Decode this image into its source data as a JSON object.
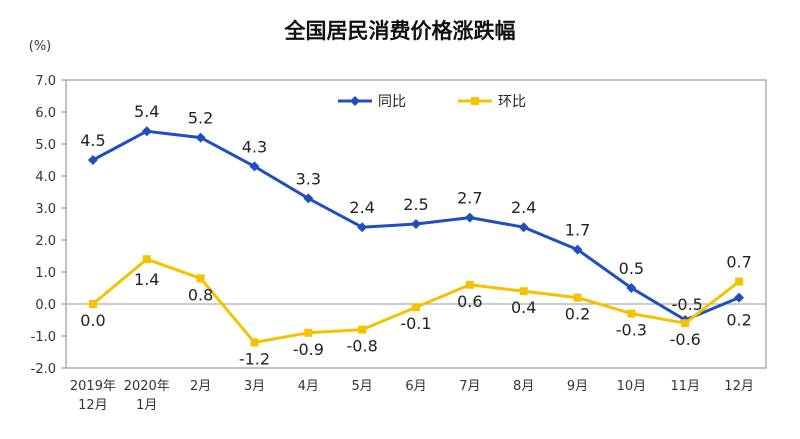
{
  "chart_data": {
    "type": "line",
    "title": "全国居民消费价格涨跌幅",
    "unit_label": "(%)",
    "ylim": [
      -2.0,
      7.0
    ],
    "yticks": [
      "7.0",
      "6.0",
      "5.0",
      "4.0",
      "3.0",
      "2.0",
      "1.0",
      "0.0",
      "-1.0",
      "-2.0"
    ],
    "categories": [
      [
        "2019年",
        "12月"
      ],
      [
        "2020年",
        "1月"
      ],
      [
        "2月"
      ],
      [
        "3月"
      ],
      [
        "4月"
      ],
      [
        "5月"
      ],
      [
        "6月"
      ],
      [
        "7月"
      ],
      [
        "8月"
      ],
      [
        "9月"
      ],
      [
        "10月"
      ],
      [
        "11月"
      ],
      [
        "12月"
      ]
    ],
    "legend_position": "top-center",
    "series": [
      {
        "name": "同比",
        "color": "#1f4fbf",
        "marker": "diamond",
        "values": [
          4.5,
          5.4,
          5.2,
          4.3,
          3.3,
          2.4,
          2.5,
          2.7,
          2.4,
          1.7,
          0.5,
          -0.5,
          0.2
        ],
        "labels": [
          "4.5",
          "5.4",
          "5.2",
          "4.3",
          "3.3",
          "2.4",
          "2.5",
          "2.7",
          "2.4",
          "1.7",
          "0.5",
          "-0.5",
          "0.2"
        ]
      },
      {
        "name": "环比",
        "color": "#f5c200",
        "marker": "square",
        "values": [
          0.0,
          1.4,
          0.8,
          -1.2,
          -0.9,
          -0.8,
          -0.1,
          0.6,
          0.4,
          0.2,
          -0.3,
          -0.6,
          0.7
        ],
        "labels": [
          "0.0",
          "1.4",
          "0.8",
          "-1.2",
          "-0.9",
          "-0.8",
          "-0.1",
          "0.6",
          "0.4",
          "0.2",
          "-0.3",
          "-0.6",
          "0.7"
        ]
      }
    ]
  }
}
